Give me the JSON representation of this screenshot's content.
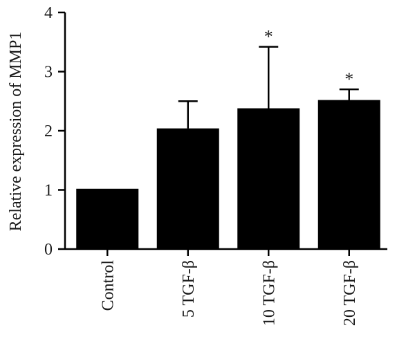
{
  "chart_data": {
    "type": "bar",
    "title": "",
    "xlabel": "",
    "ylabel": "Relative expression of MMP1",
    "ylim": [
      0,
      4
    ],
    "yticks": [
      0,
      1,
      2,
      3,
      4
    ],
    "grid": false,
    "categories": [
      "Control",
      "5 TGF-β",
      "10 TGF-β",
      "20 TGF-β"
    ],
    "values": [
      1.02,
      2.04,
      2.38,
      2.52
    ],
    "error_upper": [
      0,
      0.46,
      1.04,
      0.18
    ],
    "significance": [
      "",
      "",
      "*",
      "*"
    ],
    "bar_color": "#000000"
  }
}
